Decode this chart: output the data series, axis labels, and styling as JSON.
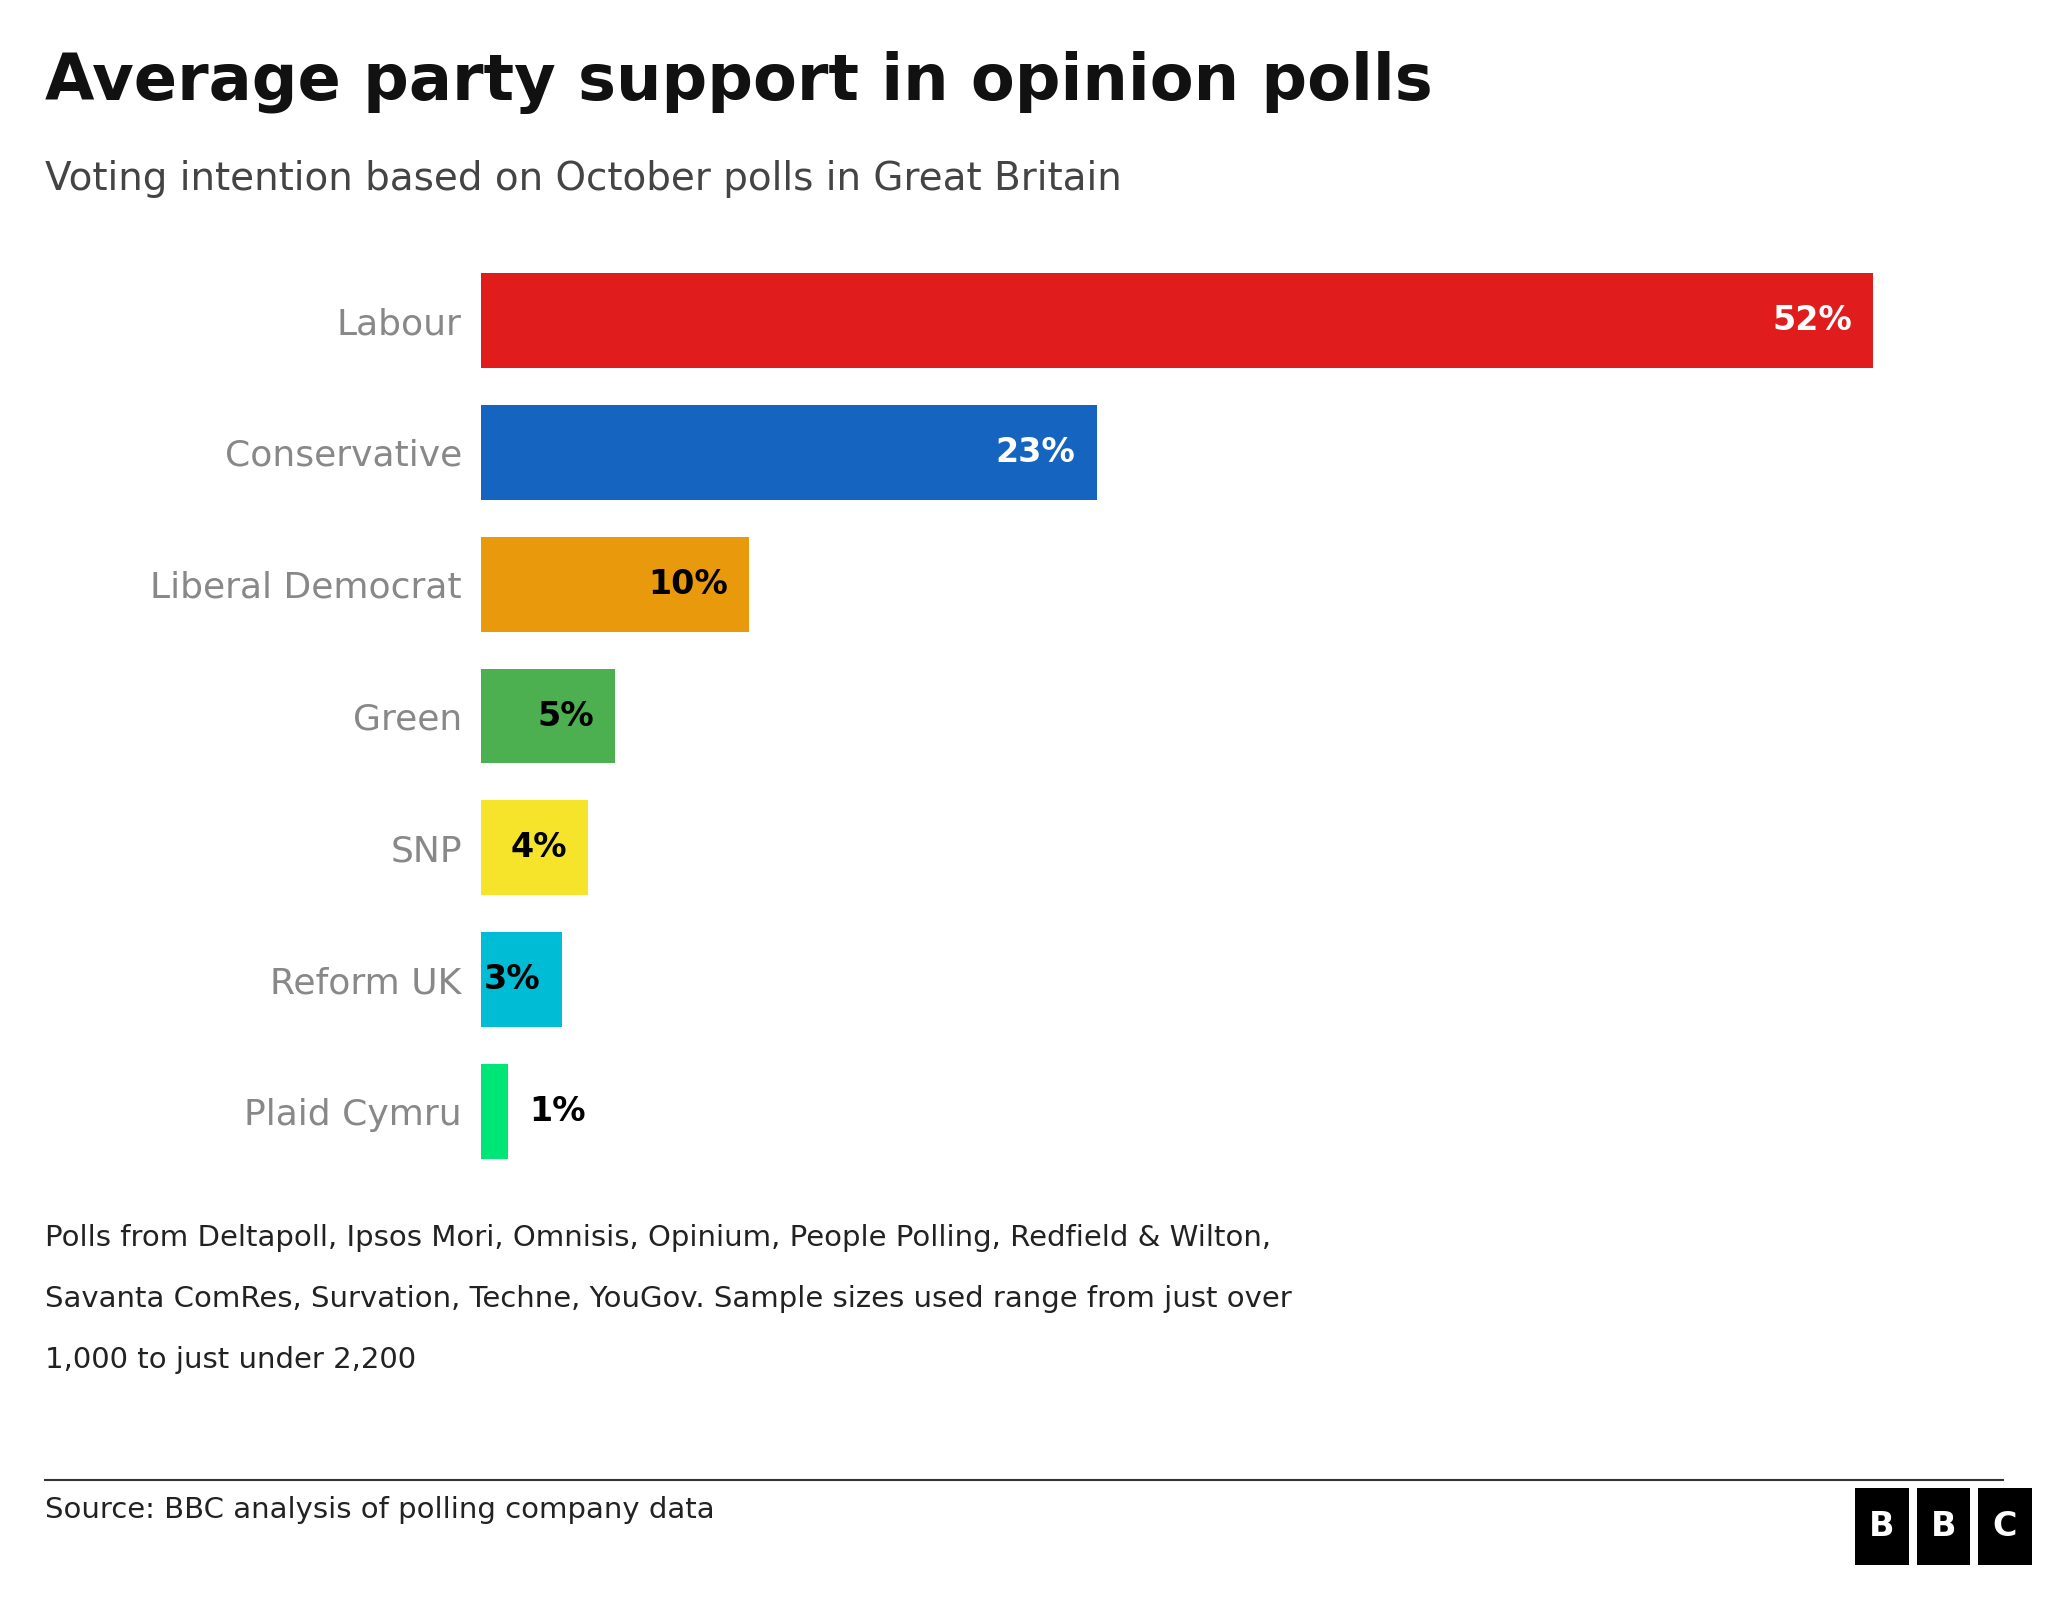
{
  "title": "Average party support in opinion polls",
  "subtitle": "Voting intention based on October polls in Great Britain",
  "parties": [
    "Labour",
    "Conservative",
    "Liberal Democrat",
    "Green",
    "SNP",
    "Reform UK",
    "Plaid Cymru"
  ],
  "values": [
    52,
    23,
    10,
    5,
    4,
    3,
    1
  ],
  "colors": [
    "#e01c1c",
    "#1565c0",
    "#e89a0c",
    "#4caf50",
    "#f5e42a",
    "#00bcd4",
    "#00e676"
  ],
  "label_colors": [
    "white",
    "white",
    "black",
    "black",
    "black",
    "black",
    "black"
  ],
  "footnote_line1": "Polls from Deltapoll, Ipsos Mori, Omnisis, Opinium, People Polling, Redfield & Wilton,",
  "footnote_line2": "Savanta ComRes, Survation, Techne, YouGov. Sample sizes used range from just over",
  "footnote_line3": "1,000 to just under 2,200",
  "source": "Source: BBC analysis of polling company data",
  "background_color": "#ffffff",
  "bar_height": 0.72,
  "xlim": [
    0,
    57
  ],
  "title_fontsize": 46,
  "subtitle_fontsize": 28,
  "label_fontsize": 24,
  "party_fontsize": 26,
  "footnote_fontsize": 21,
  "source_fontsize": 21
}
